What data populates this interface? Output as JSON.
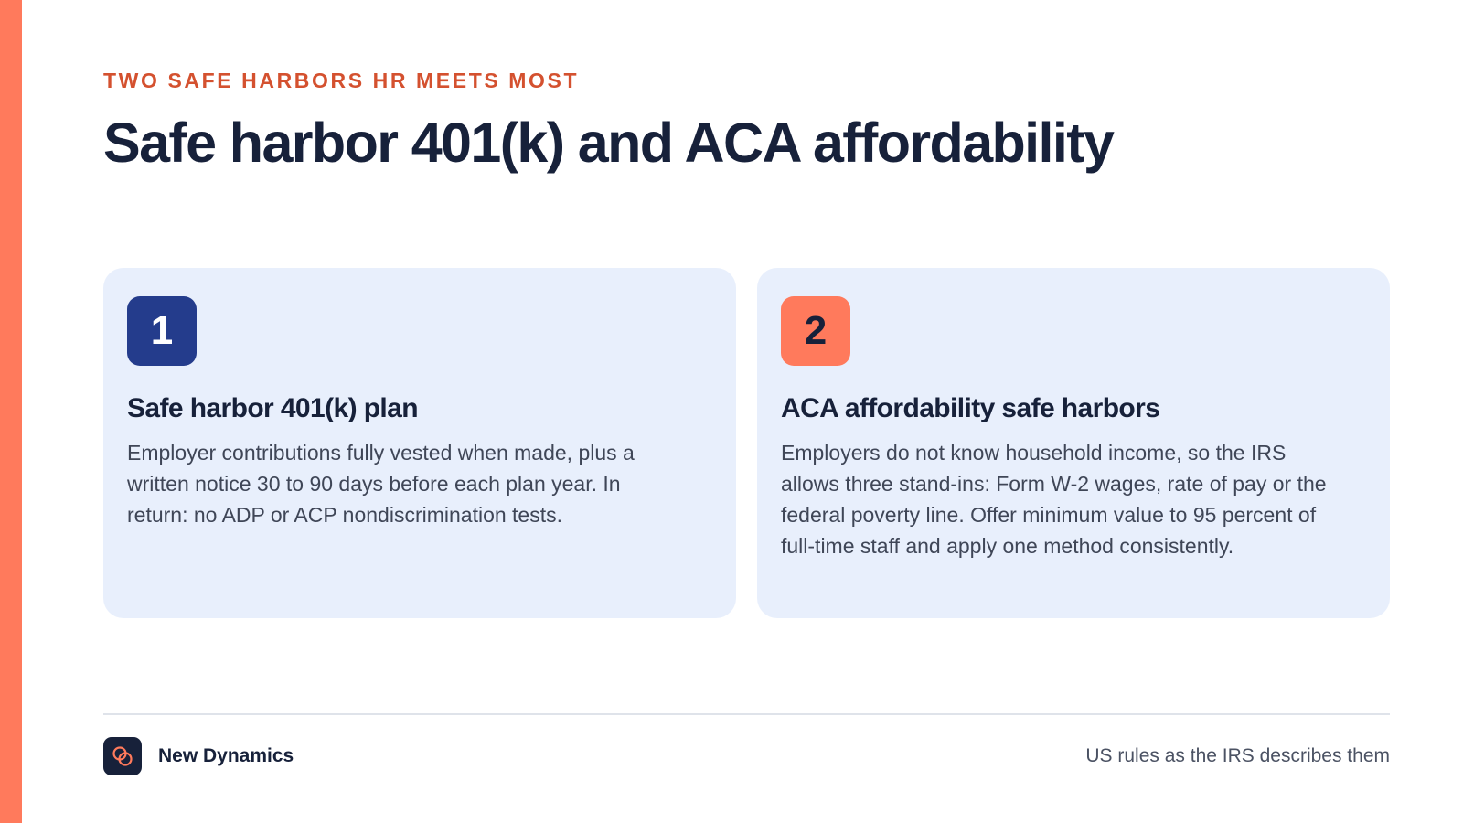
{
  "colors": {
    "accent_orange": "#ff7a5c",
    "eyebrow": "#d4512f",
    "navy": "#243c8c",
    "ink": "#17213a",
    "card_bg": "#e8effc"
  },
  "header": {
    "eyebrow": "TWO SAFE HARBORS HR MEETS MOST",
    "title": "Safe harbor 401(k) and ACA affordability"
  },
  "cards": [
    {
      "number": "1",
      "heading": "Safe harbor 401(k) plan",
      "body": "Employer contributions fully vested when made, plus a written notice 30 to 90 days before each plan year. In return: no ADP or ACP nondiscrimination tests."
    },
    {
      "number": "2",
      "heading": "ACA affordability safe harbors",
      "body": "Employers do not know household income, so the IRS allows three stand-ins: Form W-2 wages, rate of pay or the federal poverty line. Offer minimum value to 95 percent of full-time staff and apply one method consistently."
    }
  ],
  "footer": {
    "logo_icon": "interlocking-rings-icon",
    "brand": "New Dynamics",
    "note": "US rules as the IRS describes them"
  }
}
